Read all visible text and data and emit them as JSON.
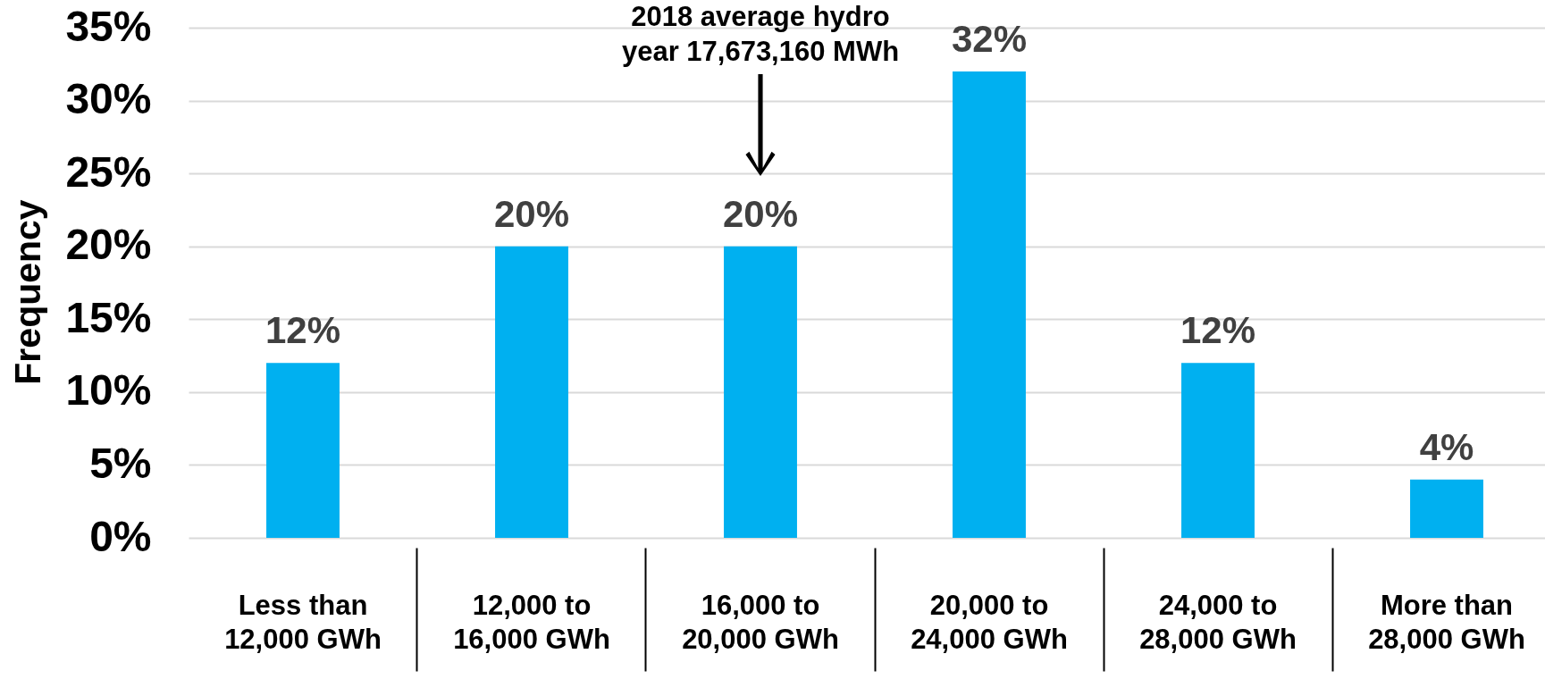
{
  "chart_data": {
    "type": "bar",
    "ylabel": "Frequency",
    "categories": [
      "Less than 12,000 GWh",
      "12,000 to 16,000 GWh",
      "16,000 to 20,000 GWh",
      "20,000 to 24,000 GWh",
      "24,000 to 28,000 GWh",
      "More than 28,000 GWh"
    ],
    "values": [
      12,
      20,
      20,
      32,
      12,
      4
    ],
    "color": "#00b0f0",
    "value_labels": [
      "12%",
      "20%",
      "20%",
      "32%",
      "12%",
      "4%"
    ],
    "ylim": [
      0,
      35
    ],
    "yticks": [
      {
        "value": 0,
        "label": "0%"
      },
      {
        "value": 5,
        "label": "5%"
      },
      {
        "value": 10,
        "label": "10%"
      },
      {
        "value": 15,
        "label": "15%"
      },
      {
        "value": 20,
        "label": "20%"
      },
      {
        "value": 25,
        "label": "25%"
      },
      {
        "value": 30,
        "label": "30%"
      },
      {
        "value": 35,
        "label": "35%"
      }
    ],
    "grid": "y",
    "annotations": [
      "2018 average hydro year 17,673,160 MWh"
    ]
  }
}
